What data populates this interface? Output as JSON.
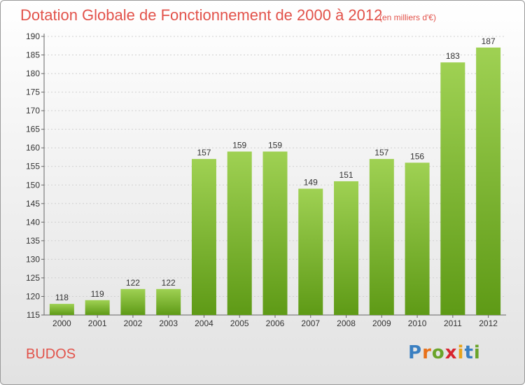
{
  "header": {
    "title": "Dotation Globale de Fonctionnement de 2000 à 2012",
    "subtitle": "(en milliers d'€)"
  },
  "footer": {
    "commune": "BUDOS",
    "logo_letters": [
      "P",
      "r",
      "o",
      "x",
      "i",
      "t",
      "i"
    ],
    "logo_colors": [
      "#3a7fc1",
      "#e8711a",
      "#6aa42a",
      "#d8242f",
      "#e8a31a",
      "#3a7fc1",
      "#6aa42a"
    ]
  },
  "chart_data": {
    "type": "bar",
    "title": "Dotation Globale de Fonctionnement de 2000 à 2012",
    "categories": [
      "2000",
      "2001",
      "2002",
      "2003",
      "2004",
      "2005",
      "2006",
      "2007",
      "2008",
      "2009",
      "2010",
      "2011",
      "2012"
    ],
    "values": [
      118,
      119,
      122,
      122,
      157,
      159,
      159,
      149,
      151,
      157,
      156,
      183,
      187
    ],
    "ylim": [
      115,
      190
    ],
    "yticks": [
      115,
      120,
      125,
      130,
      135,
      140,
      145,
      150,
      155,
      160,
      165,
      170,
      175,
      180,
      185,
      190
    ],
    "grid": true,
    "bar_color_top": "#9fd153",
    "bar_color_bottom": "#5e9a16"
  }
}
